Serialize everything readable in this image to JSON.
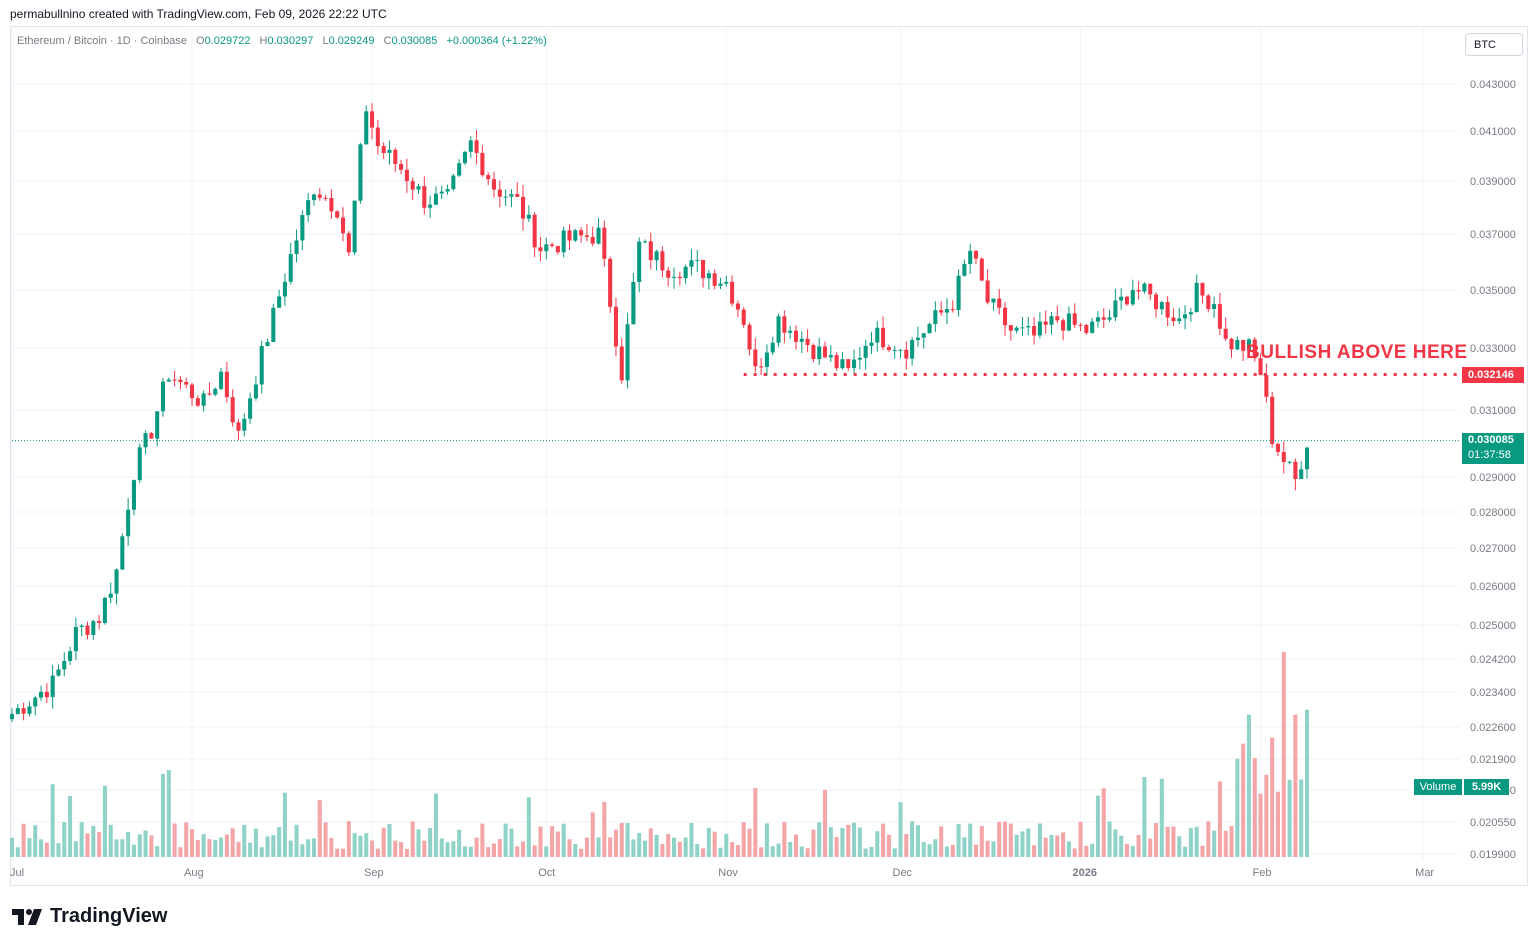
{
  "header": {
    "caption": "permabullnino created with TradingView.com, Feb 09, 2026 22:22 UTC"
  },
  "legend": {
    "symbol": "Ethereum / Bitcoin · 1D · Coinbase",
    "o_label": "O",
    "o": "0.029722",
    "h_label": "H",
    "h": "0.030297",
    "l_label": "L",
    "l": "0.029249",
    "c_label": "C",
    "c": "0.030085",
    "change": "+0.000364 (+1.22%)"
  },
  "currency_button": "BTC",
  "annotation": {
    "text": "BULLISH ABOVE HERE",
    "level": 0.032146,
    "level_label": "0.032146",
    "color": "#f23645"
  },
  "last_price": {
    "value": "0.030085",
    "countdown": "01:37:58"
  },
  "volume_badge": {
    "label": "Volume",
    "value": "5.99K"
  },
  "brand": {
    "name": "TradingView"
  },
  "colors": {
    "up": "#089981",
    "down": "#f23645",
    "vol_up": "#8fd3c8",
    "vol_down": "#f4a5a8"
  },
  "chart_data": {
    "type": "candlestick",
    "symbol": "ETH/BTC",
    "timeframe": "1D",
    "price_axis": {
      "scale": "log",
      "ticks": [
        "0.043000",
        "0.041000",
        "0.039000",
        "0.037000",
        "0.035000",
        "0.033000",
        "0.031000",
        "0.029000",
        "0.028000",
        "0.027000",
        "0.026000",
        "0.025000",
        "0.024200",
        "0.023400",
        "0.022600",
        "0.021900",
        "0.021200",
        "0.020550",
        "0.019900"
      ],
      "range": [
        0.0195,
        0.0435
      ]
    },
    "time_axis": {
      "labels": [
        "Jul",
        "Aug",
        "Sep",
        "Oct",
        "Nov",
        "Dec",
        "2026",
        "Feb",
        "Mar"
      ],
      "start": "2025-07-01",
      "end": "2026-03-07"
    },
    "key_level": 0.032146,
    "last_close": 0.030085,
    "ohlc_keypoints": [
      [
        "2025-07-01",
        0.0229
      ],
      [
        "2025-07-08",
        0.0236
      ],
      [
        "2025-07-12",
        0.0248
      ],
      [
        "2025-07-16",
        0.0252
      ],
      [
        "2025-07-19",
        0.0264
      ],
      [
        "2025-07-22",
        0.0292
      ],
      [
        "2025-07-25",
        0.0304
      ],
      [
        "2025-07-28",
        0.0322
      ],
      [
        "2025-08-03",
        0.0312
      ],
      [
        "2025-08-06",
        0.0322
      ],
      [
        "2025-08-09",
        0.0302
      ],
      [
        "2025-08-14",
        0.0334
      ],
      [
        "2025-08-18",
        0.0362
      ],
      [
        "2025-08-22",
        0.0388
      ],
      [
        "2025-08-26",
        0.038
      ],
      [
        "2025-08-28",
        0.0362
      ],
      [
        "2025-08-31",
        0.042
      ],
      [
        "2025-09-02",
        0.0404
      ],
      [
        "2025-09-06",
        0.0395
      ],
      [
        "2025-09-10",
        0.0383
      ],
      [
        "2025-09-14",
        0.0383
      ],
      [
        "2025-09-18",
        0.0405
      ],
      [
        "2025-09-22",
        0.0388
      ],
      [
        "2025-09-26",
        0.0382
      ],
      [
        "2025-09-30",
        0.0365
      ],
      [
        "2025-10-05",
        0.0368
      ],
      [
        "2025-10-10",
        0.037
      ],
      [
        "2025-10-14",
        0.0322
      ],
      [
        "2025-10-17",
        0.0366
      ],
      [
        "2025-10-22",
        0.0358
      ],
      [
        "2025-10-27",
        0.0358
      ],
      [
        "2025-11-01",
        0.0353
      ],
      [
        "2025-11-04",
        0.034
      ],
      [
        "2025-11-06",
        0.0322
      ],
      [
        "2025-11-10",
        0.034
      ],
      [
        "2025-11-16",
        0.033
      ],
      [
        "2025-11-22",
        0.0322
      ],
      [
        "2025-11-26",
        0.0335
      ],
      [
        "2025-12-02",
        0.033
      ],
      [
        "2025-12-06",
        0.0338
      ],
      [
        "2025-12-10",
        0.0346
      ],
      [
        "2025-12-13",
        0.0364
      ],
      [
        "2025-12-16",
        0.0346
      ],
      [
        "2025-12-20",
        0.0336
      ],
      [
        "2025-12-24",
        0.0334
      ],
      [
        "2025-12-28",
        0.034
      ],
      [
        "2026-01-02",
        0.0336
      ],
      [
        "2026-01-06",
        0.0341
      ],
      [
        "2026-01-10",
        0.0351
      ],
      [
        "2026-01-14",
        0.0346
      ],
      [
        "2026-01-18",
        0.034
      ],
      [
        "2026-01-21",
        0.0349
      ],
      [
        "2026-01-24",
        0.0346
      ],
      [
        "2026-01-26",
        0.0332
      ],
      [
        "2026-01-30",
        0.033
      ],
      [
        "2026-02-01",
        0.0322
      ],
      [
        "2026-02-03",
        0.0302
      ],
      [
        "2026-02-05",
        0.0295
      ],
      [
        "2026-02-07",
        0.0289
      ],
      [
        "2026-02-09",
        0.0301
      ]
    ],
    "volume": {
      "recent_peak_date": "2026-02-05",
      "last": "5.99K"
    }
  }
}
